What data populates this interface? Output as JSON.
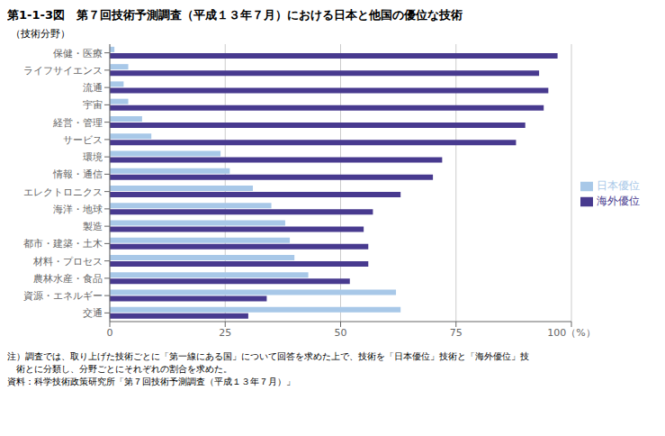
{
  "chart_data": {
    "type": "bar",
    "orientation": "horizontal",
    "title": "第1-1-3図　第７回技術予測調査（平成１３年７月）における日本と他国の優位な技術",
    "ylabel": "（技術分野）",
    "categories": [
      "保健・医療",
      "ライフサイエンス",
      "流通",
      "宇宙",
      "経営・管理",
      "サービス",
      "環境",
      "情報・通信",
      "エレクトロニクス",
      "海洋・地球",
      "製造",
      "都市・建築・土木",
      "材料・プロセス",
      "農林水産・食品",
      "資源・エネルギー",
      "交通"
    ],
    "series": [
      {
        "name": "日本優位",
        "color": "#a8c8e8",
        "values": [
          1,
          4,
          3,
          4,
          7,
          9,
          24,
          26,
          31,
          35,
          38,
          39,
          40,
          43,
          62,
          63
        ]
      },
      {
        "name": "海外優位",
        "color": "#483a8f",
        "values": [
          97,
          93,
          95,
          94,
          90,
          88,
          72,
          70,
          63,
          57,
          55,
          56,
          56,
          52,
          34,
          30
        ]
      }
    ],
    "xlim": [
      0,
      100
    ],
    "xticks": [
      0,
      25,
      50,
      75,
      {
        "value": 100,
        "label": "100（%）"
      }
    ],
    "grid": true,
    "legend": "right",
    "annotations": [
      "注）調査では、取り上げた技術ごとに「第一線にある国」について回答を求めた上で、技術を「日本優位」技術と「海外優位」技",
      "　術とに分類し、分野ごとにそれぞれの割合を求めた。",
      "資料：科学技術政策研究所「第７回技術予測調査（平成１３年７月）」"
    ]
  }
}
